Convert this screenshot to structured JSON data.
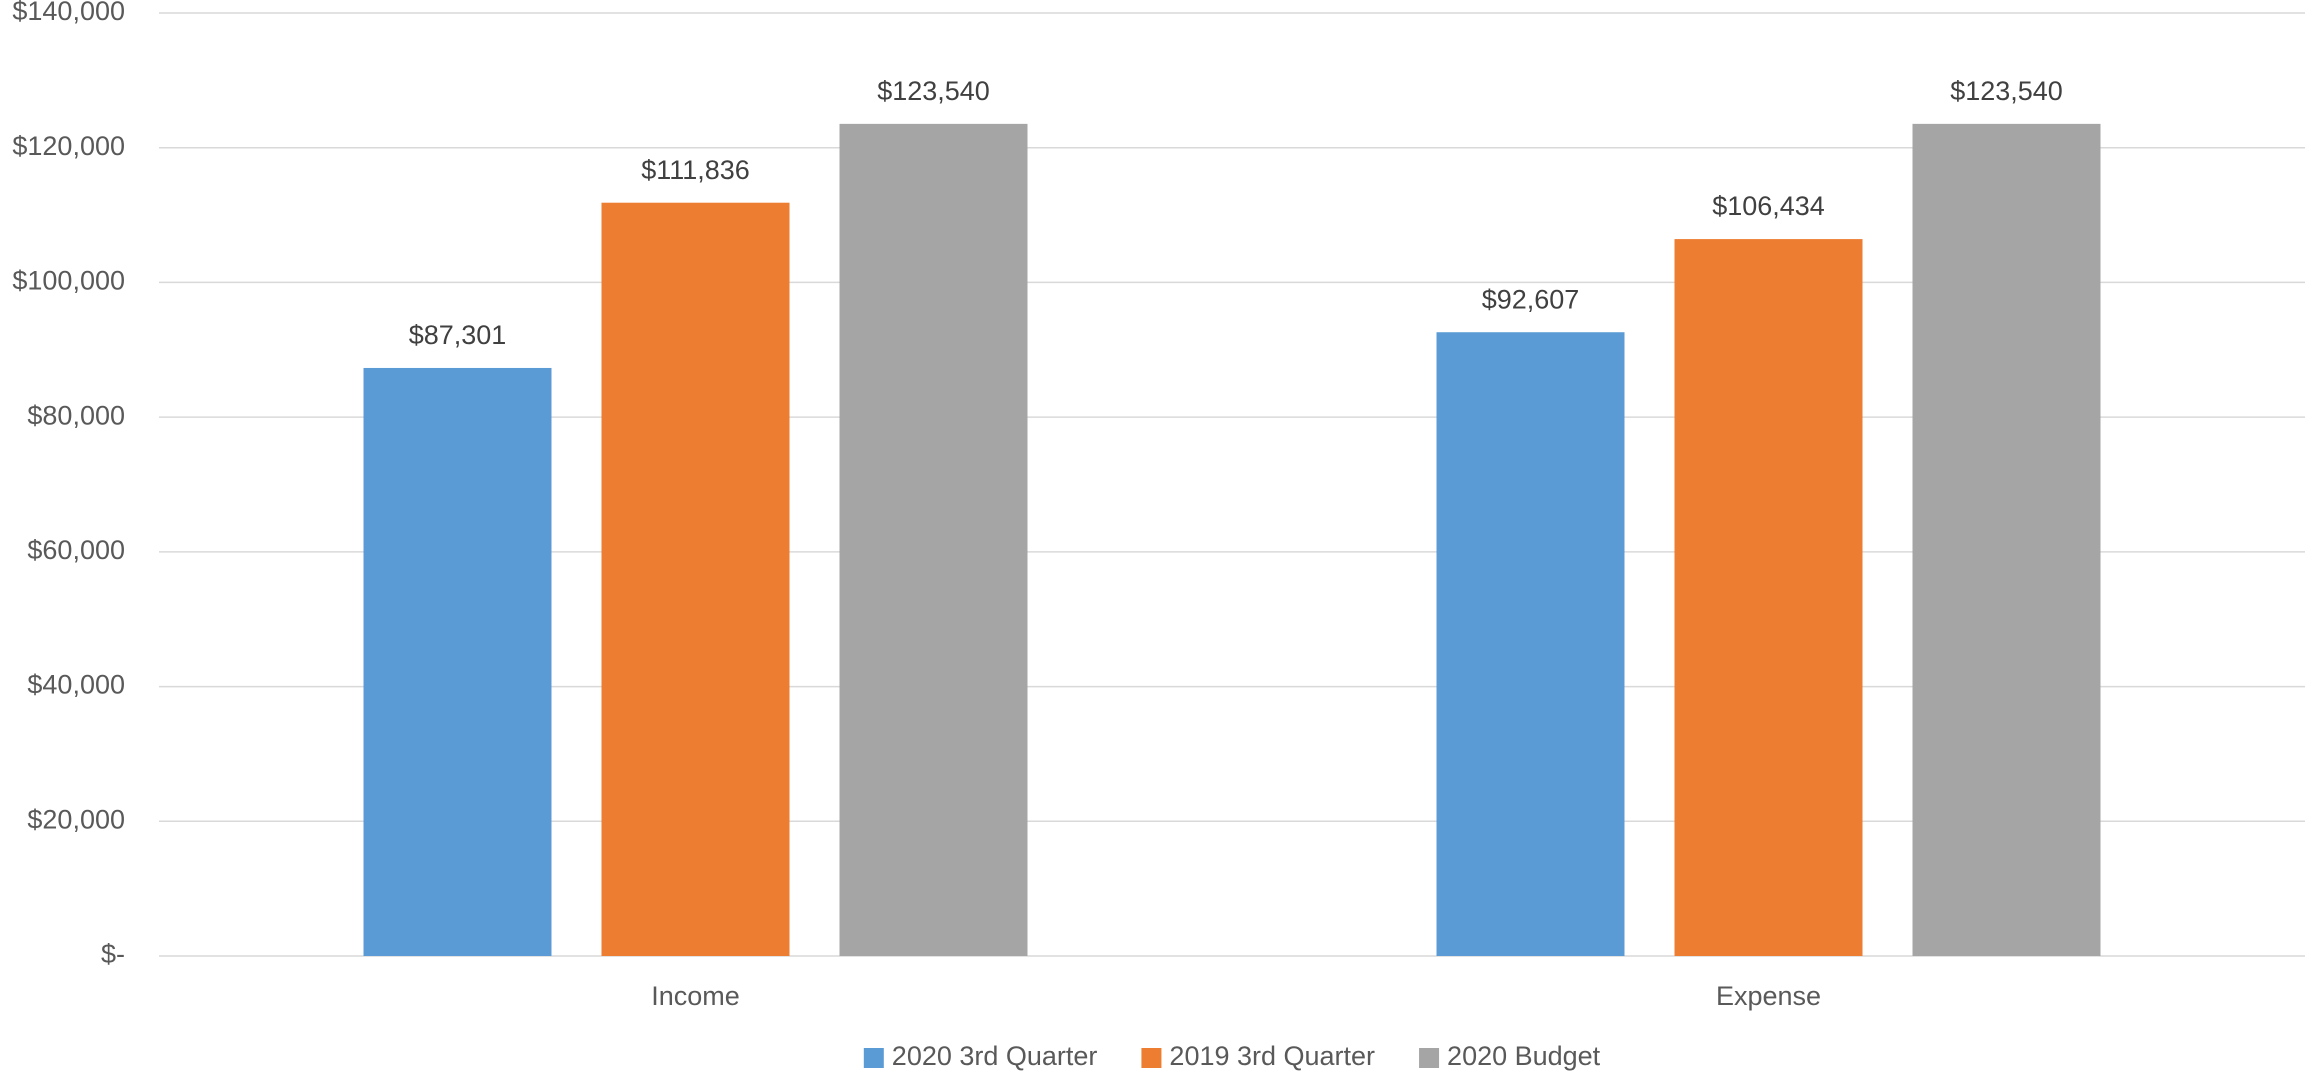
{
  "chart_data": {
    "type": "bar",
    "categories": [
      "Income",
      "Expense"
    ],
    "series": [
      {
        "name": "2020 3rd Quarter",
        "color": "#5b9bd5",
        "values": [
          87301,
          92607
        ],
        "value_labels": [
          "$87,301",
          "$92,607"
        ]
      },
      {
        "name": "2019 3rd Quarter",
        "color": "#ed7d31",
        "values": [
          111836,
          106434
        ],
        "value_labels": [
          "$111,836",
          "$106,434"
        ]
      },
      {
        "name": "2020 Budget",
        "color": "#a5a5a5",
        "values": [
          123540,
          123540
        ],
        "value_labels": [
          "$123,540",
          "$123,540"
        ]
      }
    ],
    "ylim": [
      0,
      140000
    ],
    "yticks": [
      {
        "value": 0,
        "label": "$-"
      },
      {
        "value": 20000,
        "label": "$20,000"
      },
      {
        "value": 40000,
        "label": "$40,000"
      },
      {
        "value": 60000,
        "label": "$60,000"
      },
      {
        "value": 80000,
        "label": "$80,000"
      },
      {
        "value": 100000,
        "label": "$100,000"
      },
      {
        "value": 120000,
        "label": "$120,000"
      },
      {
        "value": 140000,
        "label": "$140,000"
      }
    ],
    "grid": true,
    "legend": "bottom"
  }
}
